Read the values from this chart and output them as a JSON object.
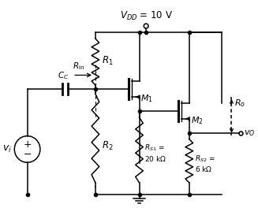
{
  "bg_color": "#ffffff",
  "lw": 1.1,
  "color": "black",
  "vdd_text": "$V_{DD}$ = 10 V",
  "vi_text": "$v_i$",
  "rin_text": "$R_{\\mathrm{in}}$",
  "cc_text": "$C_C$",
  "r1_text": "$R_1$",
  "r2_text": "$R_2$",
  "m1_text": "$M_1$",
  "m2_text": "$M_2$",
  "rs1_text": "$R_{S1}$ =\n20 k$\\Omega$",
  "rs2_text": "$R_{S2}$ =\n6 k$\\Omega$",
  "ro_text": "$R_o$",
  "vo_text": "$v_O$"
}
